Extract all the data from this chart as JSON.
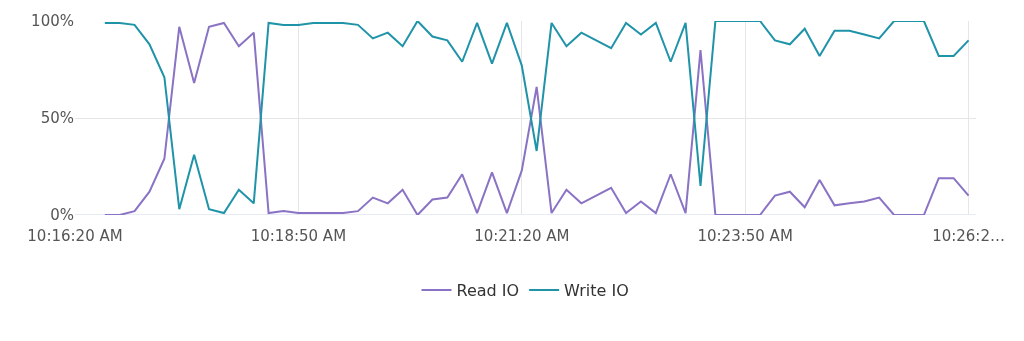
{
  "chart_data": {
    "type": "line",
    "x": [
      10.27778,
      10.28056,
      10.28333,
      10.28611,
      10.28889,
      10.29167,
      10.29444,
      10.29722,
      10.3,
      10.30278,
      10.30556,
      10.30833,
      10.31111,
      10.31389,
      10.31667,
      10.31944,
      10.32222,
      10.325,
      10.32778,
      10.33056,
      10.33333,
      10.33611,
      10.33889,
      10.34167,
      10.34444,
      10.34722,
      10.35,
      10.35278,
      10.35556,
      10.35833,
      10.36111,
      10.36389,
      10.36667,
      10.36944,
      10.37222,
      10.375,
      10.37778,
      10.38056,
      10.38333,
      10.38611,
      10.38889,
      10.39167,
      10.39444,
      10.39722,
      10.4,
      10.40278,
      10.40556,
      10.40833,
      10.41111,
      10.41389,
      10.41667,
      10.41944,
      10.42222,
      10.425,
      10.42778,
      10.43056,
      10.43333,
      10.43611,
      10.43889
    ],
    "series": [
      {
        "name": "Read IO",
        "color": "#8a72c4",
        "values": [
          0,
          0,
          2,
          12,
          29,
          97,
          68,
          97,
          99,
          87,
          94,
          1,
          2,
          1,
          1,
          1,
          1,
          2,
          9,
          6,
          13,
          0,
          8,
          9,
          21,
          1,
          22,
          1,
          23,
          66,
          1,
          13,
          6,
          10,
          14,
          1,
          7,
          1,
          21,
          1,
          85,
          0,
          0,
          0,
          0,
          10,
          12,
          4,
          18,
          5,
          6,
          7,
          9,
          0,
          0,
          0,
          19,
          19,
          10
        ]
      },
      {
        "name": "Write IO",
        "color": "#1f93a8",
        "values": [
          99,
          99,
          98,
          88,
          71,
          3,
          31,
          3,
          1,
          13,
          6,
          99,
          98,
          98,
          99,
          99,
          99,
          98,
          91,
          94,
          87,
          100,
          92,
          90,
          79,
          99,
          78,
          99,
          77,
          33,
          99,
          87,
          94,
          90,
          86,
          99,
          93,
          99,
          79,
          99,
          15,
          100,
          100,
          100,
          100,
          90,
          88,
          96,
          82,
          95,
          95,
          93,
          91,
          100,
          100,
          100,
          82,
          82,
          90
        ]
      }
    ],
    "xlim": [
      10.27222,
      10.44028
    ],
    "xticks": [
      {
        "value": 10.27222,
        "label": "10:16:20 AM"
      },
      {
        "value": 10.31389,
        "label": "10:18:50 AM"
      },
      {
        "value": 10.35556,
        "label": "10:21:20 AM"
      },
      {
        "value": 10.39722,
        "label": "10:23:50 AM"
      },
      {
        "value": 10.43889,
        "label": "10:26:2…"
      }
    ],
    "ylim": [
      0,
      100
    ],
    "yticks": [
      {
        "value": 0,
        "label": "0%"
      },
      {
        "value": 50,
        "label": "50%"
      },
      {
        "value": 100,
        "label": "100%"
      }
    ],
    "grid": true,
    "legend": "bottom",
    "marker": "none",
    "line_style": "solid"
  }
}
